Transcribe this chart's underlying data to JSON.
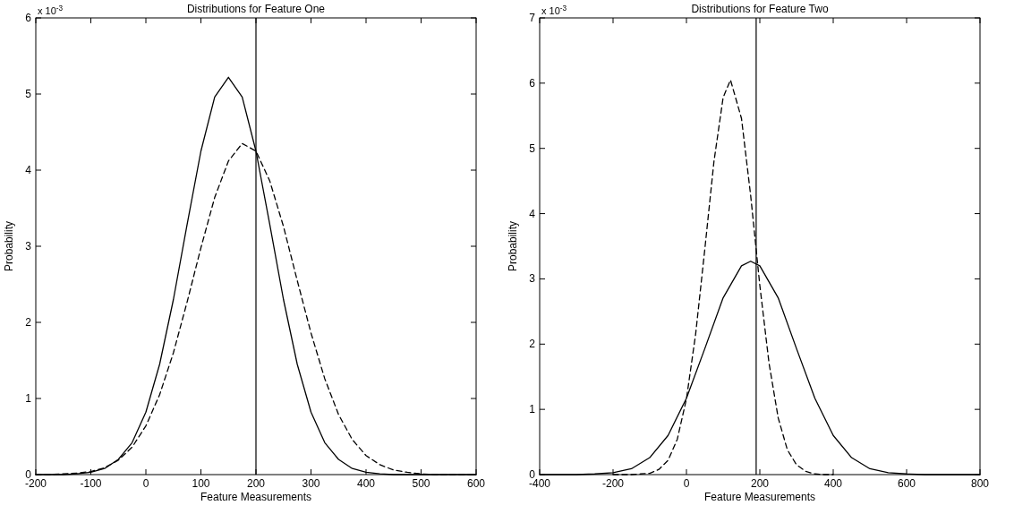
{
  "chart_data": [
    {
      "type": "line",
      "title": "Distributions for Feature One",
      "xlabel": "Feature Measurements",
      "ylabel": "Probability",
      "annotations": [
        "x 10$^{-3}$"
      ],
      "xlim": [
        -200,
        600
      ],
      "ylim": [
        0,
        6
      ],
      "xticks": [
        -200,
        -100,
        0,
        100,
        200,
        300,
        400,
        500,
        600
      ],
      "yticks": [
        0,
        1,
        2,
        3,
        4,
        5,
        6
      ],
      "marker": "none",
      "ref_lines": [
        {
          "axis": "x",
          "value": 200,
          "color": "#000000"
        }
      ],
      "series": [
        {
          "color": "#000000",
          "line_style": "solid",
          "x": [
            -200,
            -175,
            -150,
            -125,
            -100,
            -75,
            -50,
            -25,
            0,
            25,
            50,
            75,
            100,
            125,
            150,
            175,
            200,
            225,
            250,
            275,
            300,
            325,
            350,
            375,
            400,
            425,
            450,
            475,
            500,
            550,
            600
          ],
          "values": [
            0,
            0,
            0,
            0.01,
            0.03,
            0.08,
            0.2,
            0.42,
            0.82,
            1.45,
            2.3,
            3.29,
            4.25,
            4.96,
            5.22,
            4.96,
            4.25,
            3.29,
            2.3,
            1.45,
            0.82,
            0.42,
            0.2,
            0.08,
            0.03,
            0.01,
            0,
            0,
            0,
            0,
            0
          ]
        },
        {
          "color": "#000000",
          "line_style": "dashed",
          "x": [
            -200,
            -175,
            -150,
            -125,
            -100,
            -75,
            -50,
            -25,
            0,
            25,
            50,
            75,
            100,
            125,
            150,
            175,
            200,
            225,
            250,
            275,
            300,
            325,
            350,
            375,
            400,
            425,
            450,
            475,
            500,
            525,
            550,
            575,
            600
          ],
          "values": [
            0,
            0,
            0.01,
            0.02,
            0.04,
            0.09,
            0.19,
            0.36,
            0.64,
            1.05,
            1.6,
            2.27,
            2.98,
            3.64,
            4.12,
            4.35,
            4.25,
            3.86,
            3.26,
            2.55,
            1.86,
            1.26,
            0.79,
            0.46,
            0.25,
            0.13,
            0.06,
            0.03,
            0.01,
            0,
            0,
            0,
            0
          ]
        }
      ]
    },
    {
      "type": "line",
      "title": "Distributions for Feature Two",
      "xlabel": "Feature Measurements",
      "ylabel": "Probability",
      "annotations": [
        "x 10$^{-3}$"
      ],
      "xlim": [
        -400,
        800
      ],
      "ylim": [
        0,
        7
      ],
      "xticks": [
        -400,
        -200,
        0,
        200,
        400,
        600,
        800
      ],
      "yticks": [
        0,
        1,
        2,
        3,
        4,
        5,
        6,
        7
      ],
      "marker": "none",
      "ref_lines": [
        {
          "axis": "x",
          "value": 190,
          "color": "#000000"
        }
      ],
      "series": [
        {
          "color": "#000000",
          "line_style": "solid",
          "x": [
            -400,
            -350,
            -300,
            -250,
            -200,
            -150,
            -100,
            -50,
            0,
            50,
            100,
            150,
            175,
            200,
            250,
            300,
            350,
            400,
            450,
            500,
            550,
            600,
            650,
            700,
            750,
            800
          ],
          "values": [
            0,
            0,
            0,
            0.01,
            0.03,
            0.09,
            0.26,
            0.6,
            1.17,
            1.93,
            2.71,
            3.2,
            3.27,
            3.2,
            2.71,
            1.93,
            1.17,
            0.6,
            0.26,
            0.09,
            0.03,
            0.01,
            0,
            0,
            0,
            0
          ]
        },
        {
          "color": "#000000",
          "line_style": "dashed",
          "x": [
            -200,
            -175,
            -150,
            -125,
            -100,
            -75,
            -50,
            -25,
            0,
            25,
            50,
            75,
            100,
            120,
            150,
            175,
            200,
            225,
            250,
            275,
            300,
            325,
            350,
            375,
            400
          ],
          "values": [
            0,
            0,
            0,
            0.01,
            0.02,
            0.08,
            0.22,
            0.54,
            1.16,
            2.15,
            3.45,
            4.8,
            5.78,
            6.05,
            5.46,
            4.28,
            2.9,
            1.71,
            0.87,
            0.38,
            0.15,
            0.05,
            0.01,
            0,
            0
          ]
        }
      ]
    }
  ]
}
